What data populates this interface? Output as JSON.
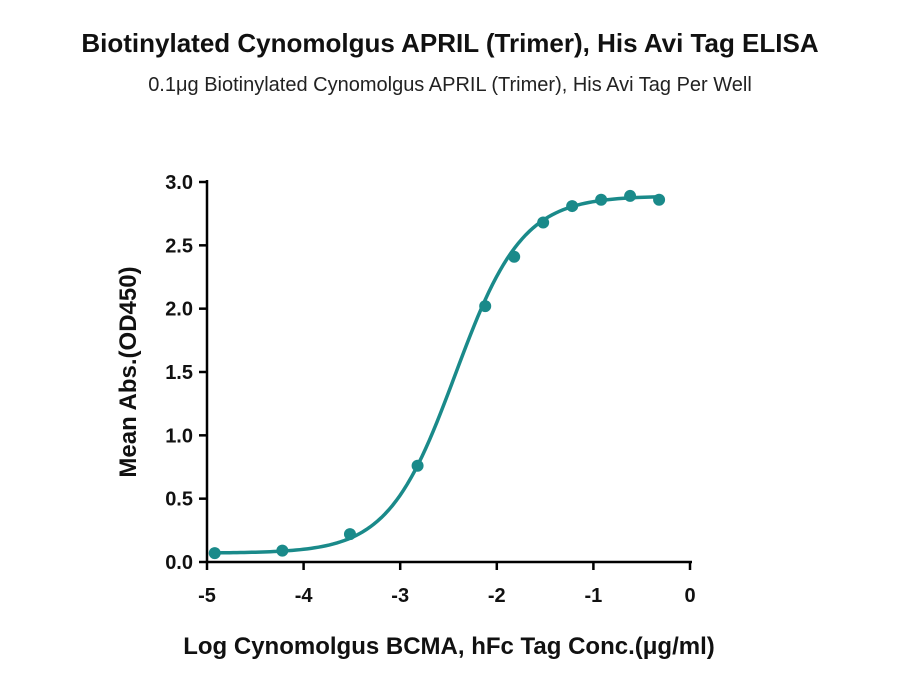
{
  "chart_data": {
    "type": "scatter",
    "title": "Biotinylated Cynomolgus APRIL (Trimer), His Avi Tag ELISA",
    "subtitle": "0.1μg Biotinylated Cynomolgus APRIL (Trimer), His Avi Tag Per Well",
    "xlabel": "Log Cynomolgus BCMA, hFc Tag Conc.(μg/ml)",
    "ylabel": "Mean Abs.(OD450)",
    "xlim": [
      -5,
      0
    ],
    "ylim": [
      0,
      3.0
    ],
    "x_ticks": [
      "-5",
      "-4",
      "-3",
      "-2",
      "-1",
      "0"
    ],
    "y_ticks": [
      "0.0",
      "0.5",
      "1.0",
      "1.5",
      "2.0",
      "2.5",
      "3.0"
    ],
    "grid": false,
    "color": "#1a8a8a",
    "series": [
      {
        "points": [
          {
            "x": -4.92,
            "y": 0.07
          },
          {
            "x": -4.22,
            "y": 0.09
          },
          {
            "x": -3.52,
            "y": 0.22
          },
          {
            "x": -2.82,
            "y": 0.76
          },
          {
            "x": -2.12,
            "y": 2.02
          },
          {
            "x": -1.82,
            "y": 2.41
          },
          {
            "x": -1.52,
            "y": 2.68
          },
          {
            "x": -1.22,
            "y": 2.81
          },
          {
            "x": -0.92,
            "y": 2.86
          },
          {
            "x": -0.62,
            "y": 2.89
          },
          {
            "x": -0.32,
            "y": 2.86
          }
        ],
        "fit": {
          "model": "4PL",
          "bottom": 0.07,
          "top": 2.89,
          "logEC50": -2.43,
          "hill": 1.25
        }
      }
    ]
  }
}
